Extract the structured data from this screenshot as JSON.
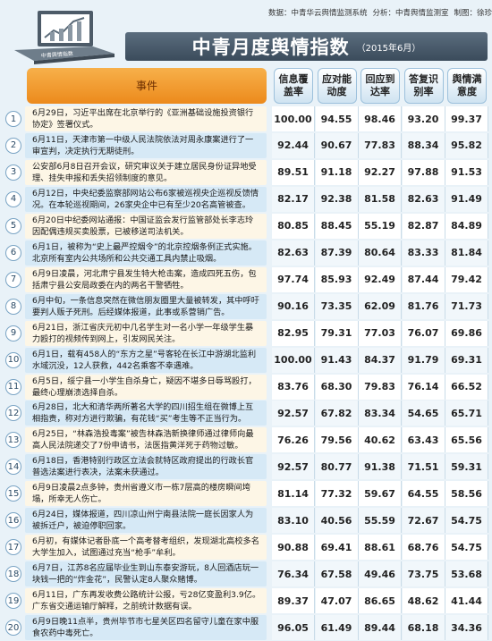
{
  "header": {
    "data_source": "数据：中青华云舆情监测系统",
    "analysis": "分析：中青舆情监测室",
    "drawing": "制图：徐珍珍",
    "logo": "中青舆情指数",
    "title": "中青月度舆情指数",
    "subtitle": "（2015年6月）"
  },
  "table": {
    "columns": [
      "事件",
      "信息覆盖率",
      "应对能动度",
      "回应到达率",
      "答复识别率",
      "舆情满意度"
    ],
    "rows": [
      [
        "1",
        "6月29日，习近平出席在北京举行的《亚洲基础设施投资银行协定》签署仪式。",
        "100.00",
        "94.55",
        "98.46",
        "93.20",
        "99.37"
      ],
      [
        "2",
        "6月11日，天津市第一中级人民法院依法对周永康案进行了一审宣判，决定执行无期徒刑。",
        "92.44",
        "90.67",
        "77.83",
        "88.34",
        "95.82"
      ],
      [
        "3",
        "公安部6月8日召开会议，研究审议关于建立居民身份证异地受理、挂失申报和丢失招领制度的意见。",
        "89.51",
        "91.18",
        "92.27",
        "97.88",
        "91.53"
      ],
      [
        "4",
        "6月12日，中央纪委监察部网站公布6家被巡视央企巡视反馈情况。在本轮巡视期间，26家央企中已有至少20名高管被查。",
        "82.17",
        "92.38",
        "81.58",
        "82.63",
        "91.49"
      ],
      [
        "5",
        "6月20日中纪委网站通报：中国证监会发行监管部处长李志玲因配偶违规买卖股票，已被移送司法机关。",
        "80.85",
        "88.45",
        "55.19",
        "82.87",
        "84.89"
      ],
      [
        "6",
        "6月1日，被称为“史上最严控烟令”的北京控烟条例正式实施。北京所有室内公共场所和公共交通工具内禁止吸烟。",
        "82.63",
        "87.39",
        "80.64",
        "83.33",
        "81.84"
      ],
      [
        "7",
        "6月9日凌晨，河北肃宁县发生特大枪击案，造成四死五伤，包括肃宁县公安局政委在内的两名干警牺牲。",
        "97.74",
        "85.93",
        "92.49",
        "87.44",
        "79.42"
      ],
      [
        "8",
        "6月中旬，一条信息突然在微信朋友圈里大量被转发，其中呼吁要判人贩子死刑。后经媒体报道，此事或系营销广告。",
        "90.16",
        "73.35",
        "62.09",
        "81.76",
        "71.73"
      ],
      [
        "9",
        "6月21日，浙江省庆元初中几名学生对一名小学一年级学生暴力殴打的视频传到网上，引发网民关注。",
        "82.95",
        "79.31",
        "77.03",
        "76.07",
        "69.86"
      ],
      [
        "10",
        "6月1日，载有458人的“东方之星”号客轮在长江中游湖北监利水域沉没，12人获救，442名乘客不幸遇难。",
        "100.00",
        "91.43",
        "84.37",
        "91.79",
        "69.31"
      ],
      [
        "11",
        "6月5日，绥宁县一小学生自杀身亡，疑因不堪多日辱骂殴打，最终心理崩溃选择自杀。",
        "83.76",
        "68.30",
        "79.83",
        "76.14",
        "66.52"
      ],
      [
        "12",
        "6月28日，北大和清华两所著名大学的四川招生组在微博上互相指责，称对方进行欺骗，有花钱“买”考生等不正当行为。",
        "92.57",
        "67.82",
        "83.34",
        "54.65",
        "65.71"
      ],
      [
        "13",
        "6月25日，“林森浩投毒案”被告林森浩新换律师通过律师向最高人民法院递交了7份申请书，法医指黄洋死于药物过敏。",
        "76.26",
        "79.56",
        "40.62",
        "63.43",
        "65.56"
      ],
      [
        "14",
        "6月18日，香港特别行政区立法会就特区政府提出的行政长官普选法案进行表决，法案未获通过。",
        "92.57",
        "80.77",
        "91.38",
        "71.51",
        "59.31"
      ],
      [
        "15",
        "6月9日凌晨2点多钟，贵州省遵义市一栋7层高的楼房瞬间垮塌，所幸无人伤亡。",
        "81.14",
        "77.32",
        "59.67",
        "64.55",
        "58.56"
      ],
      [
        "16",
        "6月24日，媒体报道，四川凉山州宁南县法院一庭长因家人为被拆迁户，被迫停职回家。",
        "83.10",
        "40.56",
        "55.59",
        "72.67",
        "54.75"
      ],
      [
        "17",
        "6月初，有媒体记者卧底一个高考替考组织，发现湖北高校多名大学生加入，试图通过充当“枪手”牟利。",
        "90.88",
        "69.41",
        "88.61",
        "68.76",
        "54.75"
      ],
      [
        "18",
        "6月7日，江苏8名应届毕业生到山东泰安游玩，8人回酒店玩一块钱一把的“炸金花”，民警认定8人聚众赌博。",
        "76.34",
        "67.58",
        "49.46",
        "73.75",
        "53.68"
      ],
      [
        "19",
        "6月11日，广东再发收费公路统计公报，亏28亿变盈利3.9亿。广东省交通运输厅解释，之前统计数据有误。",
        "89.37",
        "47.07",
        "86.65",
        "48.62",
        "41.44"
      ],
      [
        "20",
        "6月9日晚11点半，贵州毕节市七星关区四名留守儿童在家中服食农药中毒死亡。",
        "96.05",
        "61.49",
        "89.44",
        "68.18",
        "34.36"
      ]
    ]
  }
}
